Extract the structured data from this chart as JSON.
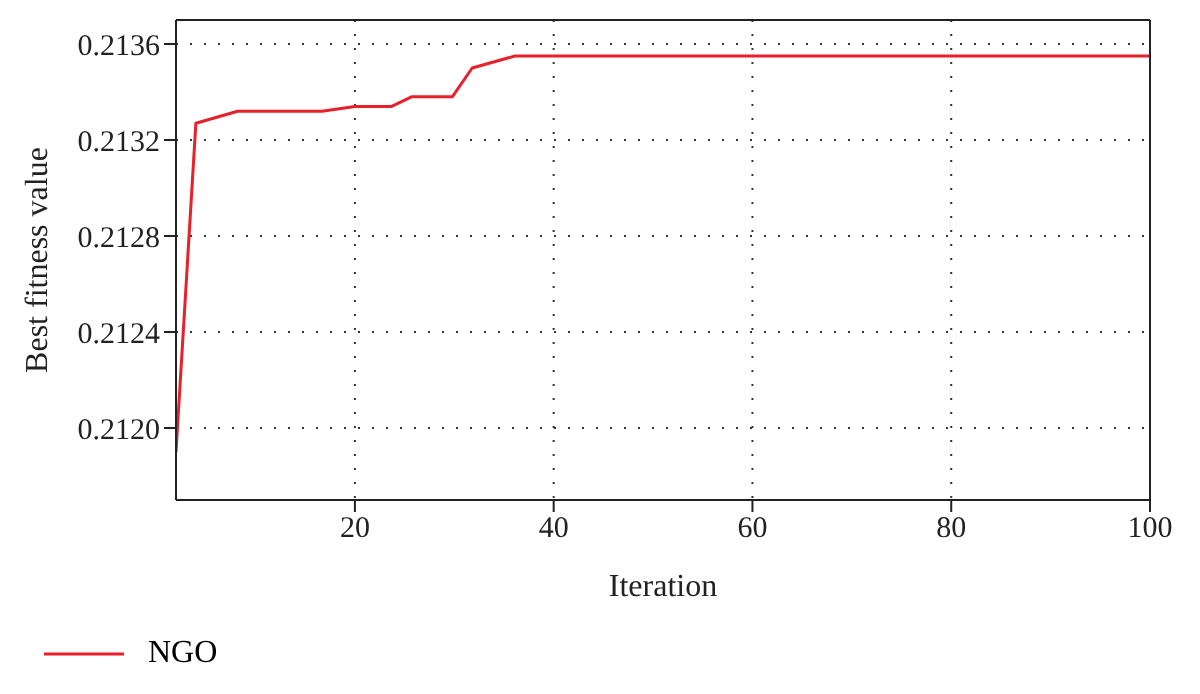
{
  "chart_data": {
    "type": "line",
    "xlabel": "Iteration",
    "ylabel": "Best fitness value",
    "x": [
      2,
      4,
      8.2,
      16.7,
      20,
      23.7,
      25.7,
      29.8,
      31.8,
      36.1,
      100
    ],
    "series": [
      {
        "name": "NGO",
        "color": "#e8202a",
        "values": [
          0.2119,
          0.21327,
          0.21332,
          0.21332,
          0.21334,
          0.21334,
          0.21338,
          0.21338,
          0.2135,
          0.21355,
          0.21355
        ]
      }
    ],
    "xlim": [
      2,
      100
    ],
    "xticks": [
      20,
      40,
      60,
      80,
      100
    ],
    "ylim": [
      0.2117,
      0.2137
    ],
    "yticks": [
      {
        "value": 0.212,
        "label": "0.2120"
      },
      {
        "value": 0.2124,
        "label": "0.2124"
      },
      {
        "value": 0.2128,
        "label": "0.2128"
      },
      {
        "value": 0.2132,
        "label": "0.2132"
      },
      {
        "value": 0.2136,
        "label": "0.2136"
      }
    ],
    "grid": true,
    "legend": "bottom left",
    "marker": "none",
    "line_style": "solid"
  }
}
